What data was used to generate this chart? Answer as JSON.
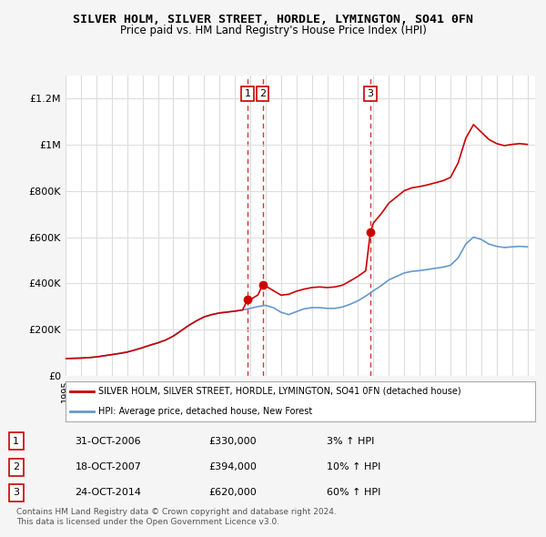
{
  "title": "SILVER HOLM, SILVER STREET, HORDLE, LYMINGTON, SO41 0FN",
  "subtitle": "Price paid vs. HM Land Registry's House Price Index (HPI)",
  "legend_line1": "SILVER HOLM, SILVER STREET, HORDLE, LYMINGTON, SO41 0FN (detached house)",
  "legend_line2": "HPI: Average price, detached house, New Forest",
  "transactions": [
    {
      "num": 1,
      "date": "31-OCT-2006",
      "price": 330000,
      "pct": "3%",
      "dir": "↑",
      "year": 2006.83
    },
    {
      "num": 2,
      "date": "18-OCT-2007",
      "price": 394000,
      "pct": "10%",
      "dir": "↑",
      "year": 2007.8
    },
    {
      "num": 3,
      "date": "24-OCT-2014",
      "price": 620000,
      "pct": "60%",
      "dir": "↑",
      "year": 2014.8
    }
  ],
  "footnote1": "Contains HM Land Registry data © Crown copyright and database right 2024.",
  "footnote2": "This data is licensed under the Open Government Licence v3.0.",
  "ylim": [
    0,
    1300000
  ],
  "yticks": [
    0,
    200000,
    400000,
    600000,
    800000,
    1000000,
    1200000
  ],
  "ytick_labels": [
    "£0",
    "£200K",
    "£400K",
    "£600K",
    "£800K",
    "£1M",
    "£1.2M"
  ],
  "line_color_red": "#cc0000",
  "line_color_blue": "#6699cc",
  "bg_color": "#f5f5f5",
  "plot_bg": "#ffffff",
  "grid_color": "#dddddd"
}
